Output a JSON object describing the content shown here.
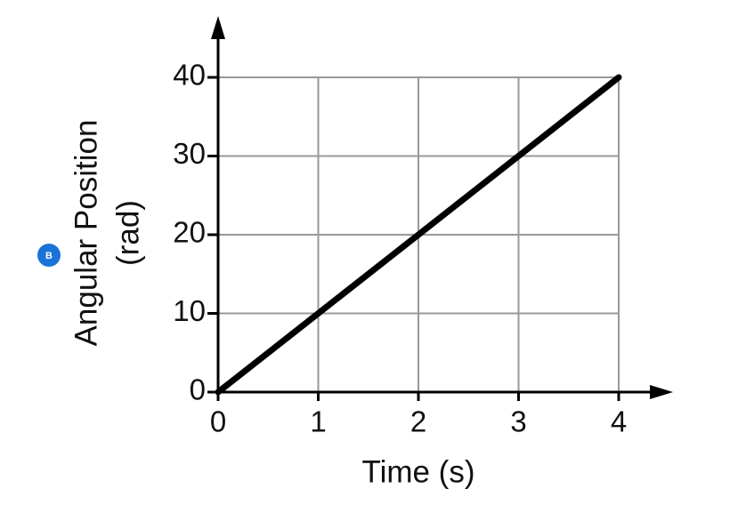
{
  "chart_data": {
    "type": "line",
    "badge": "B",
    "xlabel": "Time (s)",
    "ylabel": [
      "Angular Position",
      "(rad)"
    ],
    "x": [
      0,
      1,
      2,
      3,
      4
    ],
    "series": [
      {
        "color": "#000000",
        "values": [
          0,
          10,
          20,
          30,
          40
        ]
      }
    ],
    "xlim": [
      0,
      4
    ],
    "ylim": [
      0,
      40
    ],
    "xticks": [
      0,
      1,
      2,
      3,
      4
    ],
    "yticks": [
      0,
      10,
      20,
      30,
      40
    ],
    "grid": true
  }
}
